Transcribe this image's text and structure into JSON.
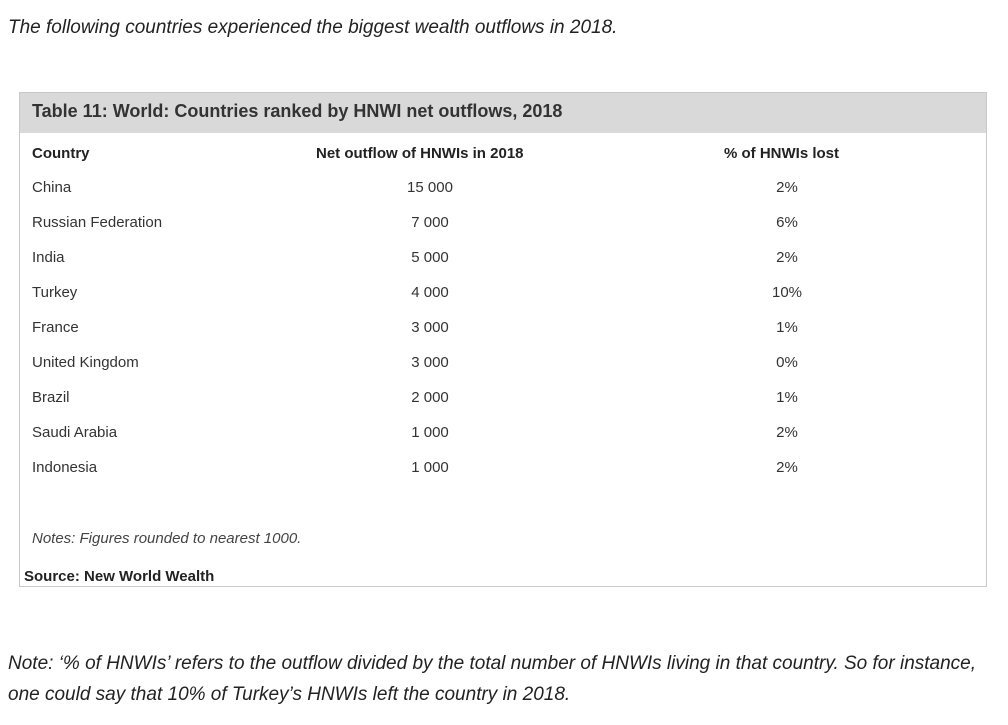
{
  "intro_text": "The following countries experienced the biggest wealth outflows in 2018.",
  "table": {
    "title": "Table 11: World: Countries ranked by HNWI net outflows, 2018",
    "headers": {
      "country": "Country",
      "outflow": "Net outflow of HNWIs in 2018",
      "pct": "% of HNWIs lost"
    },
    "rows": [
      {
        "country": "China",
        "outflow": "15 000",
        "pct": "2%"
      },
      {
        "country": "Russian Federation",
        "outflow": "7 000",
        "pct": "6%"
      },
      {
        "country": "India",
        "outflow": "5 000",
        "pct": "2%"
      },
      {
        "country": "Turkey",
        "outflow": "4 000",
        "pct": "10%"
      },
      {
        "country": "France",
        "outflow": "3 000",
        "pct": "1%"
      },
      {
        "country": "United Kingdom",
        "outflow": "3 000",
        "pct": "0%"
      },
      {
        "country": "Brazil",
        "outflow": "2 000",
        "pct": "1%"
      },
      {
        "country": "Saudi Arabia",
        "outflow": "1 000",
        "pct": "2%"
      },
      {
        "country": "Indonesia",
        "outflow": "1 000",
        "pct": "2%"
      }
    ],
    "notes": "Notes: Figures rounded to nearest 1000.",
    "source": "Source: New World Wealth"
  },
  "footnote": "Note: ‘% of HNWIs’ refers to the outflow divided by the total number of HNWIs living in that country. So for instance, one could say that 10% of Turkey’s HNWIs left the country in 2018.",
  "colors": {
    "title_bar": "#d9d9d9",
    "border": "#c8c8c8",
    "text": "#222222"
  }
}
